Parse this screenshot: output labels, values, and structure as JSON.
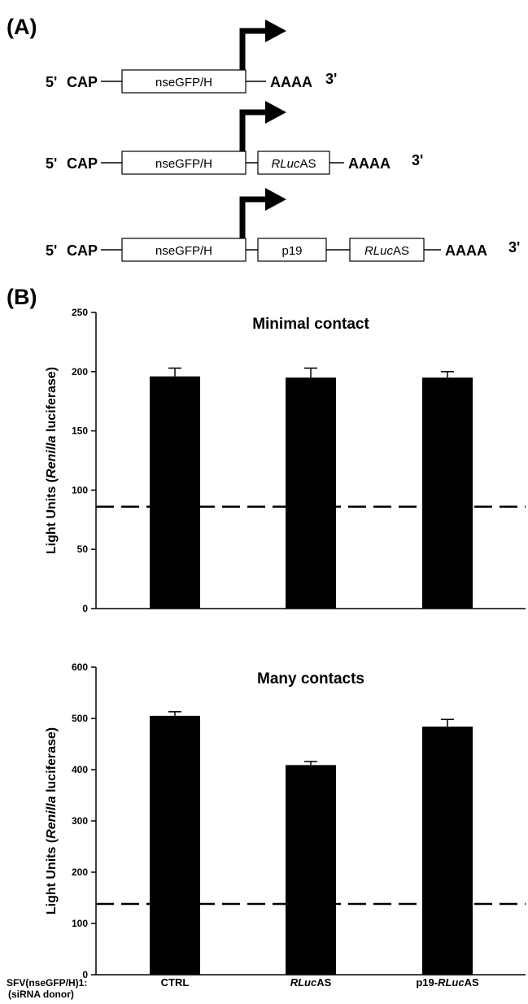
{
  "panel_a": {
    "label": "(A)",
    "constructs": [
      {
        "five_prime": "5'",
        "cap": "CAP",
        "boxes": [
          {
            "label": "nseGFP/H",
            "italic": "",
            "suffix": ""
          }
        ],
        "polya": "AAAA",
        "three_prime": "3'"
      },
      {
        "five_prime": "5'",
        "cap": "CAP",
        "boxes": [
          {
            "label": "nseGFP/H",
            "italic": "",
            "suffix": ""
          },
          {
            "label": "",
            "italic": "RLuc",
            "suffix": "AS"
          }
        ],
        "polya": "AAAA",
        "three_prime": "3'"
      },
      {
        "five_prime": "5'",
        "cap": "CAP",
        "boxes": [
          {
            "label": "nseGFP/H",
            "italic": "",
            "suffix": ""
          },
          {
            "label": "p19",
            "italic": "",
            "suffix": ""
          },
          {
            "label": "",
            "italic": "RLuc",
            "suffix": "AS"
          }
        ],
        "polya": "AAAA",
        "three_prime": "3'"
      }
    ]
  },
  "panel_b_label": "(B)",
  "x_axis": {
    "prefix_line1": "SFV(nseGFP/H)1:",
    "prefix_line2": "(siRNA donor)",
    "categories": [
      {
        "italic": "",
        "plain": "CTRL"
      },
      {
        "italic": "RLuc",
        "plain": "AS"
      },
      {
        "italic": "RLuc",
        "plain": "AS",
        "pre": "p19-"
      }
    ]
  },
  "chart_data": [
    {
      "type": "bar",
      "title": "Minimal contact",
      "ylabel": "Light Units (Renilla luciferase)",
      "ylabel_parts": {
        "pre": "Light Units (",
        "italic": "Renilla",
        "post": " luciferase)"
      },
      "categories": [
        "CTRL",
        "RLucAS",
        "p19-RLucAS"
      ],
      "values": [
        196,
        195,
        195
      ],
      "errors": [
        7,
        8,
        5
      ],
      "ylim": [
        0,
        250
      ],
      "yticks": [
        0,
        50,
        100,
        150,
        200,
        250
      ],
      "reference_line": 86,
      "grid": false,
      "bar_color": "#000000"
    },
    {
      "type": "bar",
      "title": "Many contacts",
      "ylabel": "Light Units (Renilla luciferase)",
      "ylabel_parts": {
        "pre": "Light Units (",
        "italic": "Renilla",
        "post": " luciferase)"
      },
      "categories": [
        "CTRL",
        "RLucAS",
        "p19-RLucAS"
      ],
      "values": [
        505,
        409,
        484
      ],
      "errors": [
        8,
        7,
        14
      ],
      "ylim": [
        0,
        600
      ],
      "yticks": [
        0,
        100,
        200,
        300,
        400,
        500,
        600
      ],
      "reference_line": 138,
      "grid": false,
      "bar_color": "#000000"
    }
  ]
}
